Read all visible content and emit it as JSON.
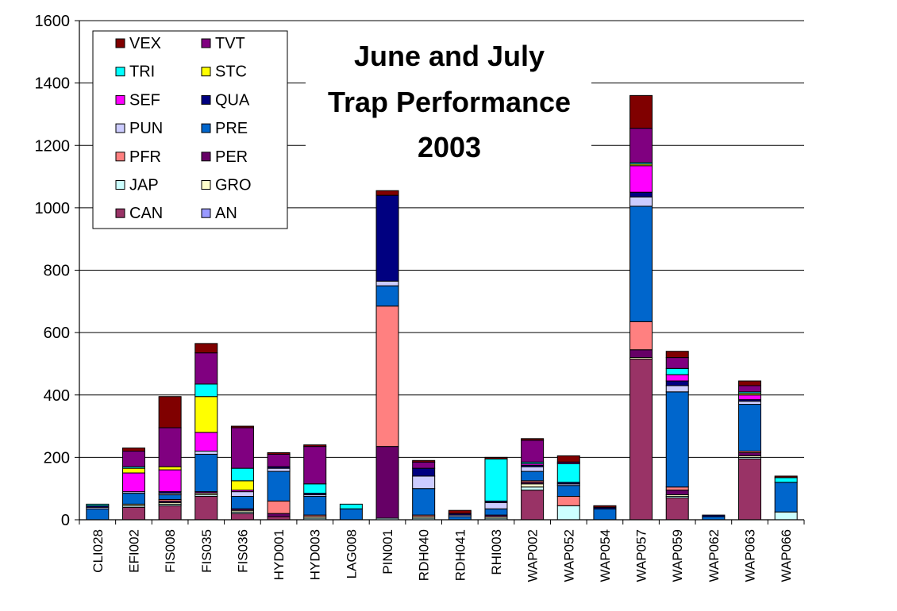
{
  "chart_data": {
    "type": "bar",
    "stacked": true,
    "title": "June and July Trap Performance 2003",
    "title_lines": [
      "June and July",
      "Trap Performance",
      "2003"
    ],
    "xlabel": "",
    "ylabel": "",
    "ylim": [
      0,
      1600
    ],
    "yticks": [
      0,
      200,
      400,
      600,
      800,
      1000,
      1200,
      1400,
      1600
    ],
    "grid": "horizontal",
    "legend_position": "top-left",
    "categories": [
      "CLI028",
      "EFI002",
      "FIS008",
      "FIS035",
      "FIS036",
      "HYD001",
      "HYD003",
      "LAG008",
      "PIN001",
      "RDH040",
      "RDH041",
      "RHI003",
      "WAP002",
      "WAP052",
      "WAP054",
      "WAP057",
      "WAP059",
      "WAP062",
      "WAP063",
      "WAP066"
    ],
    "series": [
      {
        "name": "CAN",
        "color": "#993366",
        "values": [
          0,
          40,
          45,
          75,
          20,
          10,
          0,
          0,
          0,
          0,
          0,
          0,
          95,
          0,
          0,
          515,
          70,
          0,
          195,
          0
        ]
      },
      {
        "name": "JAP",
        "color": "#ccffff",
        "values": [
          0,
          5,
          5,
          5,
          5,
          0,
          5,
          0,
          5,
          5,
          0,
          5,
          10,
          45,
          0,
          0,
          5,
          0,
          5,
          25
        ]
      },
      {
        "name": "GRO",
        "color": "#ffffcc",
        "values": [
          0,
          5,
          5,
          5,
          5,
          0,
          5,
          0,
          0,
          5,
          0,
          5,
          10,
          0,
          0,
          5,
          5,
          0,
          5,
          0
        ]
      },
      {
        "name": "AN",
        "color": "#9999ff",
        "values": [
          0,
          0,
          0,
          0,
          0,
          0,
          0,
          0,
          0,
          0,
          0,
          0,
          0,
          0,
          0,
          0,
          0,
          0,
          0,
          0
        ]
      },
      {
        "name": "PER",
        "color": "#660066",
        "values": [
          0,
          0,
          5,
          5,
          5,
          10,
          0,
          0,
          230,
          0,
          0,
          5,
          5,
          0,
          0,
          25,
          15,
          0,
          10,
          0
        ]
      },
      {
        "name": "PFR",
        "color": "#ff8080",
        "values": [
          0,
          0,
          5,
          0,
          0,
          40,
          5,
          0,
          450,
          5,
          0,
          0,
          5,
          30,
          0,
          90,
          10,
          0,
          5,
          0
        ]
      },
      {
        "name": "PRE",
        "color": "#0066cc",
        "values": [
          35,
          35,
          15,
          120,
          40,
          95,
          60,
          35,
          65,
          85,
          10,
          20,
          30,
          35,
          35,
          370,
          305,
          10,
          150,
          95
        ]
      },
      {
        "name": "PUN",
        "color": "#ccccff",
        "values": [
          5,
          5,
          5,
          10,
          15,
          10,
          5,
          0,
          15,
          40,
          5,
          20,
          15,
          5,
          0,
          30,
          20,
          0,
          10,
          0
        ]
      },
      {
        "name": "QUA",
        "color": "#000080",
        "values": [
          5,
          0,
          5,
          0,
          0,
          5,
          5,
          0,
          275,
          25,
          5,
          5,
          5,
          5,
          5,
          15,
          15,
          5,
          5,
          0
        ]
      },
      {
        "name": "SEF",
        "color": "#ff00ff",
        "values": [
          0,
          60,
          70,
          60,
          5,
          0,
          0,
          0,
          0,
          0,
          0,
          0,
          5,
          0,
          0,
          85,
          20,
          0,
          15,
          0
        ]
      },
      {
        "name": "STC",
        "color": "#ffff00",
        "values": [
          0,
          15,
          10,
          115,
          30,
          0,
          0,
          0,
          0,
          0,
          0,
          0,
          0,
          0,
          0,
          5,
          0,
          0,
          5,
          0
        ]
      },
      {
        "name": "TRI",
        "color": "#00ffff",
        "values": [
          5,
          5,
          0,
          40,
          40,
          0,
          30,
          15,
          0,
          0,
          0,
          135,
          5,
          60,
          0,
          5,
          20,
          0,
          5,
          15
        ]
      },
      {
        "name": "TVT",
        "color": "#800080",
        "values": [
          0,
          50,
          125,
          100,
          130,
          40,
          120,
          0,
          0,
          20,
          0,
          0,
          70,
          5,
          0,
          110,
          35,
          0,
          20,
          0
        ]
      },
      {
        "name": "VEX",
        "color": "#800000",
        "values": [
          0,
          10,
          100,
          30,
          5,
          5,
          5,
          0,
          15,
          5,
          10,
          5,
          5,
          20,
          5,
          105,
          20,
          0,
          15,
          5
        ]
      }
    ],
    "legend_order": [
      "VEX",
      "TVT",
      "TRI",
      "STC",
      "SEF",
      "QUA",
      "PUN",
      "PRE",
      "PFR",
      "PER",
      "JAP",
      "GRO",
      "CAN",
      "AN"
    ]
  }
}
